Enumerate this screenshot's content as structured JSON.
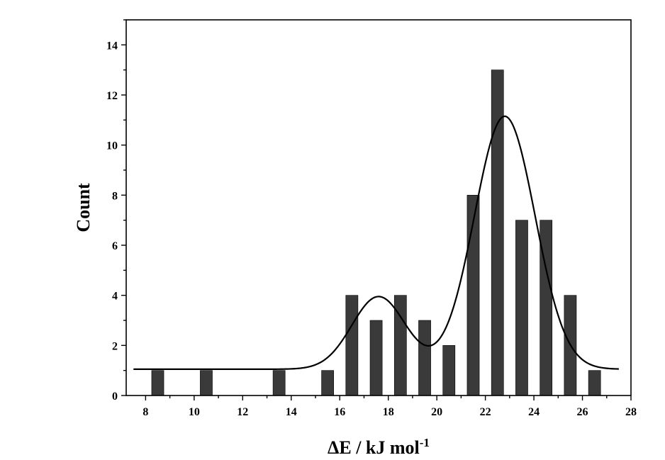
{
  "chart_data": {
    "type": "bar",
    "xlabel": "ΔE / kJ mol",
    "xlabel_sup": "-1",
    "ylabel": "Count",
    "xlim": [
      7.2,
      28
    ],
    "ylim": [
      0,
      15
    ],
    "xticks": [
      8,
      10,
      12,
      14,
      16,
      18,
      20,
      22,
      24,
      26,
      28
    ],
    "yticks": [
      0,
      2,
      4,
      6,
      8,
      10,
      12,
      14
    ],
    "bar_width": 0.5,
    "bars": [
      {
        "x": 8.5,
        "value": 1
      },
      {
        "x": 10.5,
        "value": 1
      },
      {
        "x": 13.5,
        "value": 1
      },
      {
        "x": 15.5,
        "value": 1
      },
      {
        "x": 16.5,
        "value": 4
      },
      {
        "x": 17.5,
        "value": 3
      },
      {
        "x": 18.5,
        "value": 4
      },
      {
        "x": 19.5,
        "value": 3
      },
      {
        "x": 20.5,
        "value": 2
      },
      {
        "x": 21.5,
        "value": 8
      },
      {
        "x": 22.5,
        "value": 13
      },
      {
        "x": 23.5,
        "value": 7
      },
      {
        "x": 24.5,
        "value": 7
      },
      {
        "x": 25.5,
        "value": 4
      },
      {
        "x": 26.5,
        "value": 1
      }
    ],
    "fit_curve": {
      "type": "gaussian-sum",
      "baseline": 1.05,
      "peaks": [
        {
          "center": 17.6,
          "height": 2.9,
          "sigma": 1.1
        },
        {
          "center": 22.8,
          "height": 10.1,
          "sigma": 1.25
        }
      ],
      "x_range": [
        7.5,
        27.5
      ]
    },
    "grid": false,
    "colors": {
      "bar": "#3a3a3a",
      "line": "#000000"
    }
  }
}
